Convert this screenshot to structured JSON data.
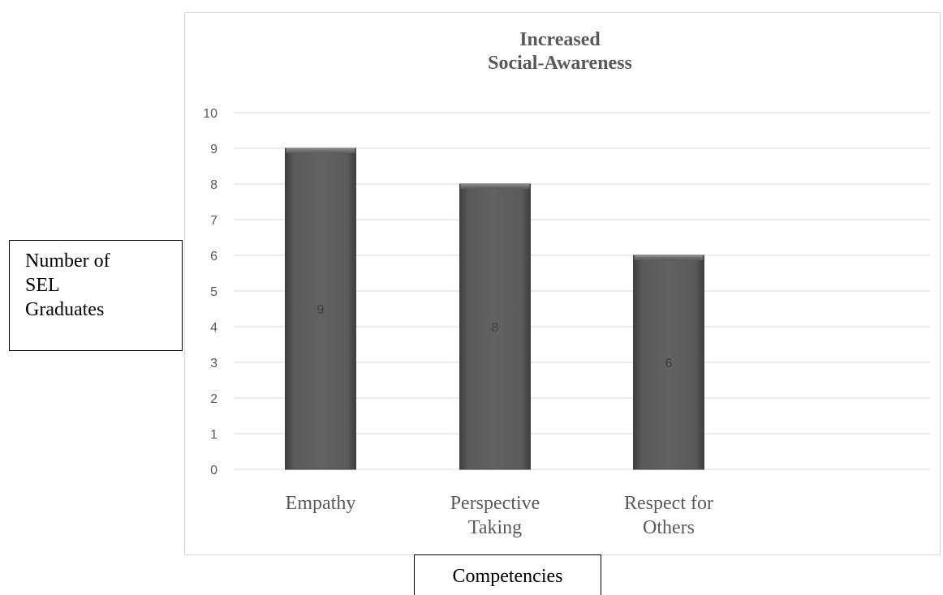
{
  "chart_data": {
    "type": "bar",
    "title_lines": [
      "Increased",
      "Social-Awareness"
    ],
    "categories": [
      [
        "Empathy"
      ],
      [
        "Perspective",
        "Taking"
      ],
      [
        "Respect for",
        "Others"
      ]
    ],
    "values": [
      9,
      8,
      6
    ],
    "data_labels": [
      "9",
      "8",
      "6"
    ],
    "ylim": [
      0,
      10
    ],
    "yticks": [
      "0",
      "1",
      "2",
      "3",
      "4",
      "5",
      "6",
      "7",
      "8",
      "9",
      "10"
    ],
    "ylabel": "Number of SEL Graduates",
    "xlabel": "Competencies",
    "grid": true
  },
  "ylabel_lines": [
    "Number of",
    "SEL",
    "Graduates"
  ],
  "colors": {
    "bar": "#595959",
    "bar_edge": "#3f3f3f",
    "grid": "#d9d9d9",
    "tick_text": "#595959",
    "data_label": "#404040",
    "title": "#595959"
  }
}
